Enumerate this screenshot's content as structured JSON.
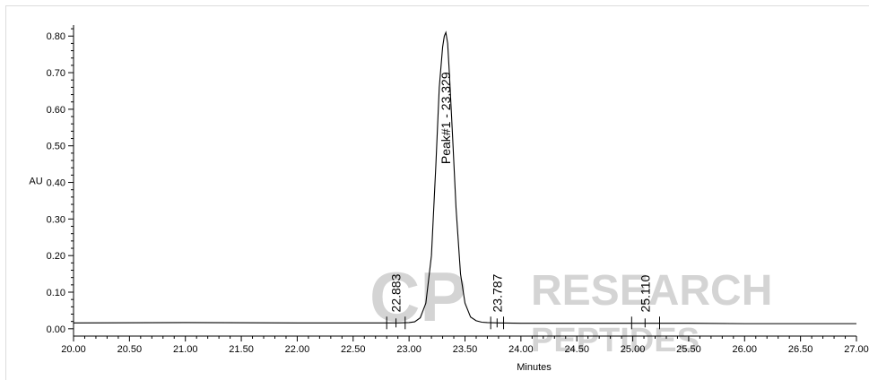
{
  "chart_data": {
    "type": "line",
    "title": "",
    "xlabel": "Minutes",
    "ylabel": "AU",
    "xlim": [
      20.0,
      27.0
    ],
    "ylim": [
      -0.02,
      0.83
    ],
    "x_ticks": [
      20.0,
      20.5,
      21.0,
      21.5,
      22.0,
      22.5,
      23.0,
      23.5,
      24.0,
      24.5,
      25.0,
      25.5,
      26.0,
      26.5,
      27.0
    ],
    "x_tick_labels": [
      "20.00",
      "20.50",
      "21.00",
      "21.50",
      "22.00",
      "22.50",
      "23.00",
      "23.50",
      "24.00",
      "24.50",
      "25.00",
      "25.50",
      "26.00",
      "26.50",
      "27.00"
    ],
    "y_ticks": [
      0.0,
      0.1,
      0.2,
      0.3,
      0.4,
      0.5,
      0.6,
      0.7,
      0.8
    ],
    "y_tick_labels": [
      "0.00",
      "0.10",
      "0.20",
      "0.30",
      "0.40",
      "0.50",
      "0.60",
      "0.70",
      "0.80"
    ],
    "grid": false,
    "baseline": 0.016,
    "series": [
      {
        "x": [
          20.0,
          21.0,
          22.0,
          22.5,
          22.9,
          23.0,
          23.05,
          23.1,
          23.15,
          23.2,
          23.24,
          23.27,
          23.3,
          23.315,
          23.329,
          23.345,
          23.36,
          23.39,
          23.42,
          23.46,
          23.5,
          23.55,
          23.6,
          23.65,
          23.7,
          23.8,
          24.0,
          24.5,
          25.0,
          25.5,
          26.0,
          26.5,
          27.0
        ],
        "y": [
          0.016,
          0.017,
          0.016,
          0.016,
          0.016,
          0.017,
          0.019,
          0.03,
          0.07,
          0.2,
          0.45,
          0.66,
          0.77,
          0.8,
          0.81,
          0.78,
          0.7,
          0.52,
          0.33,
          0.15,
          0.07,
          0.032,
          0.022,
          0.018,
          0.017,
          0.016,
          0.015,
          0.015,
          0.015,
          0.015,
          0.014,
          0.014,
          0.014
        ]
      }
    ],
    "peaks": [
      {
        "label": "22.883",
        "rt": 22.883,
        "label_height": 0.045,
        "start": 22.8,
        "end": 22.965
      },
      {
        "label": "Peak#1 - 23.329",
        "rt": 23.329,
        "label_height": 0.45,
        "start": null,
        "end": null
      },
      {
        "label": "23.787",
        "rt": 23.787,
        "label_height": 0.045,
        "start": 23.73,
        "end": 23.845
      },
      {
        "label": "25.110",
        "rt": 25.11,
        "label_height": 0.045,
        "start": 24.99,
        "end": 25.24
      }
    ]
  },
  "watermark": {
    "line1": "RESEARCH",
    "line2": "PEPTIDES",
    "color": "#d4d4d4"
  },
  "colors": {
    "line": "#000000",
    "axis": "#000000",
    "frame": "#dcdcdc"
  }
}
